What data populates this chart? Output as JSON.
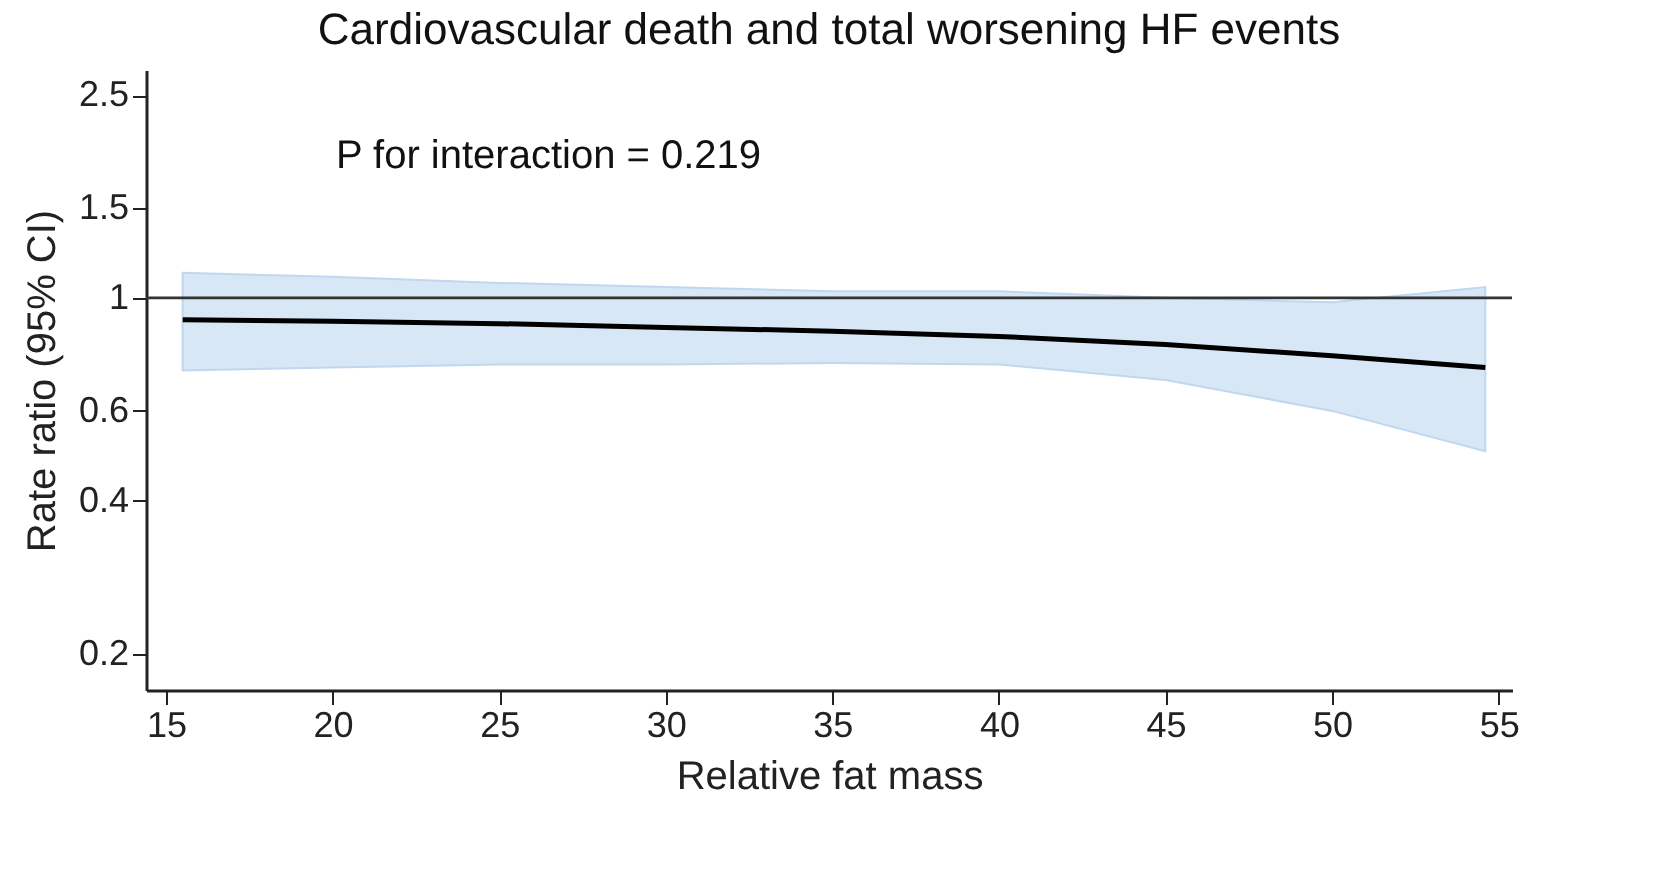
{
  "chart_data": {
    "type": "line",
    "title": "Cardiovascular death and total worsening HF events",
    "xlabel": "Relative fat mass",
    "ylabel": "Rate ratio (95% CI)",
    "annotations": [
      "P for interaction = 0.219"
    ],
    "series": [
      {
        "color": "#000000",
        "x": [
          15.5,
          20,
          25,
          30,
          35,
          40,
          45,
          50,
          54.6
        ],
        "values": [
          0.906,
          0.9,
          0.89,
          0.875,
          0.86,
          0.84,
          0.81,
          0.77,
          0.73
        ],
        "lower": [
          0.72,
          0.73,
          0.74,
          0.74,
          0.745,
          0.74,
          0.69,
          0.6,
          0.5
        ],
        "upper": [
          1.12,
          1.1,
          1.07,
          1.05,
          1.03,
          1.03,
          1.0,
          0.98,
          1.05
        ]
      }
    ],
    "xlim": [
      14.4,
      55.4
    ],
    "xticks": [
      15,
      20,
      25,
      30,
      35,
      40,
      45,
      50,
      55
    ],
    "ylim": [
      0.17,
      2.8
    ],
    "yticks": [
      0.2,
      0.4,
      0.6,
      1,
      1.5,
      2.5
    ],
    "log": "y",
    "ref_lines": [
      {
        "axis": "y",
        "value": 1,
        "color": "#333333"
      }
    ],
    "grid": false
  }
}
